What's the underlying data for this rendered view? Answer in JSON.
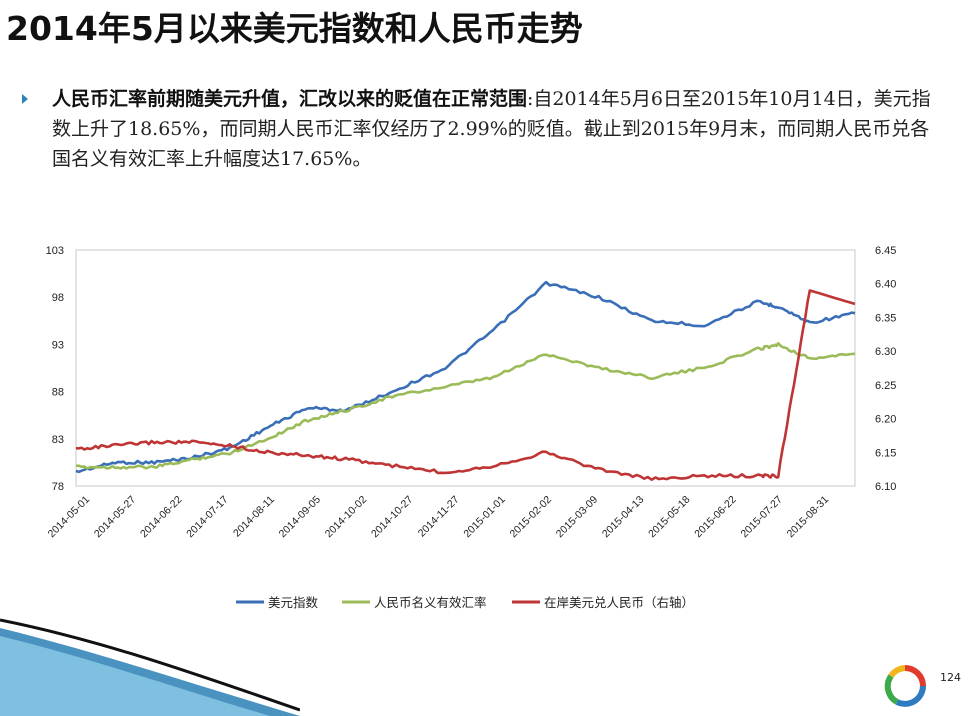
{
  "slide": {
    "title": "2014年5月以来美元指数和人民币走势",
    "paragraph_bold": "人民币汇率前期随美元升值，汇改以来的贬值在正常范围",
    "paragraph_rest": ":自2014年5月6日至2015年10月14日，美元指数上升了18.65%，而同期人民币汇率仅经历了2.99%的贬值。截止到2015年9月末，而同期人民币兑各国名义有效汇率上升幅度达17.65%。",
    "page_number": "124"
  },
  "colors": {
    "usd_index": "#3a6fb8",
    "neer": "#9bbb59",
    "cny": "#bf3535",
    "accent": "#2e84b8"
  },
  "chart_data": {
    "type": "line",
    "title": "",
    "x_tick_labels": [
      "2014-05-01",
      "2014-05-27",
      "2014-06-22",
      "2014-07-17",
      "2014-08-11",
      "2014-09-05",
      "2014-10-02",
      "2014-10-27",
      "2014-11-27",
      "2015-01-01",
      "2015-02-02",
      "2015-03-09",
      "2015-04-13",
      "2015-05-18",
      "2015-06-22",
      "2015-07-27",
      "2015-08-31"
    ],
    "y_left": {
      "ylim": [
        78,
        103
      ],
      "ticks": [
        "78",
        "83",
        "88",
        "93",
        "98",
        "103"
      ]
    },
    "y_right": {
      "ylim": [
        6.1,
        6.45
      ],
      "ticks": [
        "6.10",
        "6.15",
        "6.20",
        "6.25",
        "6.30",
        "6.35",
        "6.40",
        "6.45"
      ]
    },
    "x": [
      "2014-05-01",
      "2014-05-27",
      "2014-06-22",
      "2014-07-17",
      "2014-08-11",
      "2014-09-05",
      "2014-10-02",
      "2014-10-27",
      "2014-11-27",
      "2015-01-01",
      "2015-02-02",
      "2015-03-09",
      "2015-04-13",
      "2015-05-18",
      "2015-06-22",
      "2015-07-27",
      "2015-08-10",
      "2015-08-31",
      "2015-09-30"
    ],
    "series": [
      {
        "name": "美元指数",
        "axis": "left",
        "values": [
          79.5,
          80.5,
          80.5,
          81.0,
          82.0,
          84.2,
          86.3,
          86.0,
          88.0,
          90.5,
          94.5,
          99.5,
          98.0,
          95.5,
          95.0,
          97.5,
          97.0,
          95.3,
          96.3
        ]
      },
      {
        "name": "人民币名义有效汇率",
        "axis": "left",
        "values": [
          80.0,
          80.0,
          80.0,
          80.8,
          81.5,
          83.0,
          85.0,
          86.0,
          87.5,
          88.5,
          89.5,
          92.0,
          90.5,
          89.5,
          90.5,
          92.5,
          93.0,
          91.5,
          92.0
        ]
      },
      {
        "name": "在岸美元兑人民币（右轴）",
        "axis": "right",
        "values": [
          6.155,
          6.16,
          6.165,
          6.165,
          6.16,
          6.15,
          6.145,
          6.14,
          6.13,
          6.12,
          6.13,
          6.15,
          6.125,
          6.11,
          6.115,
          6.115,
          6.115,
          6.39,
          6.37
        ]
      }
    ],
    "legend_position": "bottom-center",
    "grid": false
  }
}
